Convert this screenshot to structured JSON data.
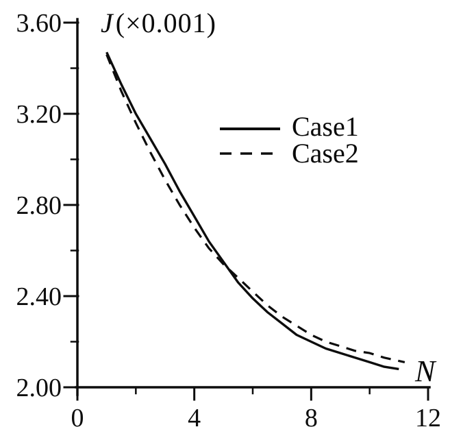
{
  "figure": {
    "title_symbol": "J",
    "title_scale": "(×0.001)",
    "x_axis_label": "N",
    "background_color": "#ffffff",
    "ink_color": "#0d0d0d"
  },
  "chart_data": {
    "type": "line",
    "title": "J(×0.001)",
    "xlabel": "N",
    "ylabel": "J (×0.001)",
    "xlim": [
      0,
      12
    ],
    "ylim": [
      2.0,
      3.6
    ],
    "grid": false,
    "legend_position": "upper-right-inside",
    "x_major_ticks": [
      0,
      4,
      8,
      12
    ],
    "x_tick_labels": [
      "0",
      "4",
      "8",
      "12"
    ],
    "x_minor_ticks": [
      2,
      6,
      10
    ],
    "y_major_ticks": [
      2.0,
      2.4,
      2.8,
      3.2,
      3.6
    ],
    "y_tick_labels": [
      "2.00",
      "2.40",
      "2.80",
      "3.20",
      "3.60"
    ],
    "y_minor_ticks": [
      2.2,
      2.6,
      3.0,
      3.4
    ],
    "series": [
      {
        "name": "Case1",
        "line_style": "solid",
        "color": "#0d0d0d",
        "x": [
          1.0,
          1.5,
          2.0,
          2.5,
          3.0,
          3.5,
          4.0,
          4.5,
          5.0,
          5.5,
          6.0,
          6.5,
          7.0,
          7.5,
          8.0,
          8.5,
          9.0,
          9.5,
          10.0,
          10.5,
          11.0
        ],
        "y": [
          3.47,
          3.33,
          3.2,
          3.09,
          2.98,
          2.86,
          2.75,
          2.64,
          2.55,
          2.46,
          2.39,
          2.33,
          2.28,
          2.23,
          2.2,
          2.17,
          2.15,
          2.13,
          2.11,
          2.09,
          2.08
        ]
      },
      {
        "name": "Case2",
        "line_style": "dashed",
        "color": "#0d0d0d",
        "x": [
          1.0,
          1.5,
          2.0,
          2.5,
          3.0,
          3.5,
          4.0,
          4.5,
          5.0,
          5.5,
          6.0,
          6.5,
          7.0,
          7.5,
          8.0,
          8.5,
          9.0,
          9.5,
          10.0,
          10.5,
          11.2
        ],
        "y": [
          3.46,
          3.3,
          3.16,
          3.03,
          2.91,
          2.8,
          2.7,
          2.61,
          2.54,
          2.48,
          2.42,
          2.36,
          2.31,
          2.27,
          2.23,
          2.2,
          2.18,
          2.16,
          2.15,
          2.13,
          2.11
        ]
      }
    ]
  }
}
